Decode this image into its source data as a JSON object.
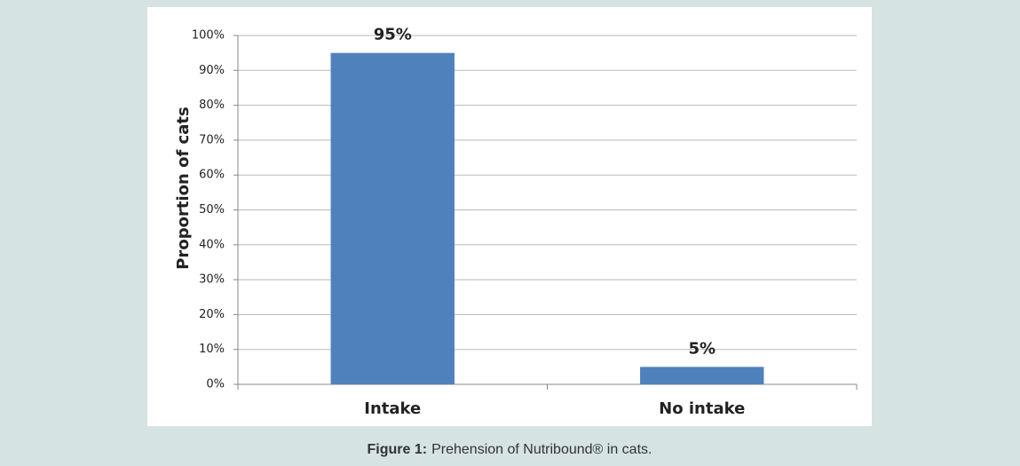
{
  "chart_data": {
    "type": "bar",
    "y_axis_label": "Proportion of cats",
    "categories": [
      "Intake",
      "No intake"
    ],
    "values": [
      95,
      5
    ],
    "value_labels": [
      "95%",
      "5%"
    ],
    "color": "#4f81bd",
    "ylim": [
      0,
      100
    ],
    "yticks": [
      {
        "value": 0,
        "label": "0%"
      },
      {
        "value": 10,
        "label": "10%"
      },
      {
        "value": 20,
        "label": "20%"
      },
      {
        "value": 30,
        "label": "30%"
      },
      {
        "value": 40,
        "label": "40%"
      },
      {
        "value": 50,
        "label": "50%"
      },
      {
        "value": 60,
        "label": "60%"
      },
      {
        "value": 70,
        "label": "70%"
      },
      {
        "value": 80,
        "label": "80%"
      },
      {
        "value": 90,
        "label": "90%"
      },
      {
        "value": 100,
        "label": "100%"
      }
    ],
    "grid": true
  },
  "caption": {
    "label": "Figure 1:",
    "text": "Prehension of Nutribound® in cats."
  }
}
